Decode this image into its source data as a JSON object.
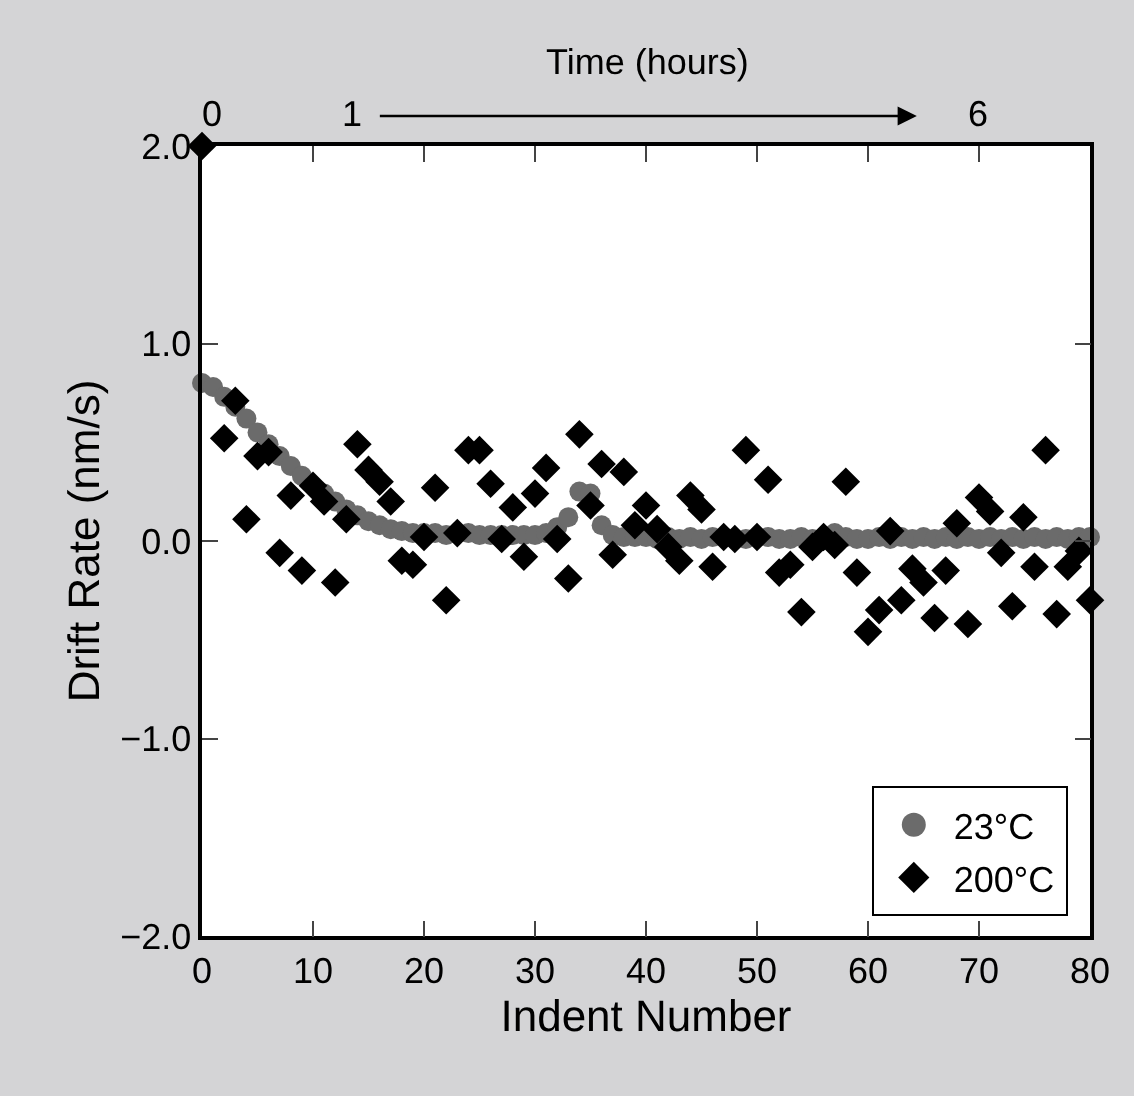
{
  "chart_data": {
    "type": "scatter",
    "xlabel": "Indent Number",
    "ylabel": "Drift Rate (nm/s)",
    "x2label": "Time (hours)",
    "xlim": [
      0,
      80
    ],
    "xticks": [
      0,
      10,
      20,
      30,
      40,
      50,
      60,
      70,
      80
    ],
    "annotations": [
      "0",
      "1",
      "6"
    ],
    "ylim": [
      -2,
      2
    ],
    "yticks": [
      {
        "value": 2,
        "label": "2.0"
      },
      {
        "value": 1,
        "label": "1.0"
      },
      {
        "value": 0,
        "label": "0.0"
      },
      {
        "value": -1,
        "label": "−1.0"
      },
      {
        "value": -2,
        "label": "−2.0"
      }
    ],
    "legend": "bottom right",
    "series": [
      {
        "name": "23°C",
        "color": "#6b6b6b",
        "marker": "circle",
        "x": [
          0,
          1,
          2,
          3,
          4,
          5,
          6,
          7,
          8,
          9,
          10,
          11,
          12,
          13,
          14,
          15,
          16,
          17,
          18,
          19,
          20,
          21,
          22,
          23,
          24,
          25,
          26,
          27,
          28,
          29,
          30,
          31,
          32,
          33,
          34,
          35,
          36,
          37,
          38,
          39,
          40,
          41,
          42,
          43,
          44,
          45,
          46,
          47,
          48,
          49,
          50,
          51,
          52,
          53,
          54,
          55,
          56,
          57,
          58,
          59,
          60,
          61,
          62,
          63,
          64,
          65,
          66,
          67,
          68,
          69,
          70,
          71,
          72,
          73,
          74,
          75,
          76,
          77,
          78,
          79,
          80
        ],
        "values": [
          0.8,
          0.78,
          0.73,
          0.68,
          0.62,
          0.55,
          0.49,
          0.43,
          0.38,
          0.33,
          null,
          0.24,
          0.2,
          0.16,
          0.13,
          0.1,
          0.08,
          0.06,
          0.05,
          0.04,
          0.04,
          0.04,
          0.03,
          null,
          0.04,
          0.03,
          0.03,
          0.03,
          0.03,
          0.03,
          0.03,
          0.04,
          0.07,
          0.12,
          0.25,
          0.24,
          0.08,
          0.03,
          0.02,
          0.02,
          0.02,
          0.01,
          0.02,
          0.01,
          0.02,
          0.01,
          0.02,
          null,
          null,
          0.01,
          null,
          0.02,
          0.01,
          0.01,
          0.02,
          0.01,
          null,
          0.04,
          0.02,
          0.01,
          0.01,
          0.02,
          0.01,
          0.02,
          0.01,
          0.02,
          0.01,
          0.02,
          0.01,
          0.02,
          0.01,
          0.02,
          0.01,
          0.02,
          0.01,
          0.02,
          0.01,
          0.02,
          0.01,
          0.02,
          0.02
        ]
      },
      {
        "name": "200°C",
        "color": "#000000",
        "marker": "diamond",
        "x": [
          0,
          2,
          3,
          4,
          5,
          6,
          7,
          8,
          9,
          10,
          11,
          12,
          13,
          14,
          15,
          16,
          17,
          18,
          19,
          20,
          21,
          22,
          23,
          24,
          25,
          26,
          27,
          28,
          29,
          30,
          31,
          32,
          33,
          34,
          35,
          36,
          37,
          38,
          39,
          40,
          41,
          42,
          43,
          44,
          45,
          46,
          47,
          48,
          49,
          50,
          51,
          52,
          53,
          54,
          55,
          56,
          57,
          58,
          59,
          60,
          61,
          62,
          63,
          64,
          65,
          66,
          67,
          68,
          69,
          70,
          71,
          72,
          73,
          74,
          75,
          76,
          77,
          78,
          79,
          80
        ],
        "values": [
          2.0,
          0.52,
          0.71,
          0.11,
          0.43,
          0.45,
          -0.06,
          0.23,
          -0.15,
          0.28,
          0.2,
          -0.21,
          0.11,
          0.49,
          0.36,
          0.3,
          0.2,
          -0.1,
          -0.12,
          0.02,
          0.27,
          -0.3,
          0.04,
          0.46,
          0.46,
          0.29,
          0.01,
          0.17,
          -0.08,
          0.24,
          0.37,
          0.01,
          -0.19,
          0.54,
          0.18,
          0.39,
          -0.07,
          0.35,
          0.08,
          0.18,
          0.06,
          -0.03,
          -0.1,
          0.23,
          0.16,
          -0.13,
          0.02,
          0.01,
          0.46,
          0.02,
          0.31,
          -0.16,
          -0.12,
          -0.36,
          -0.03,
          0.02,
          -0.02,
          0.3,
          -0.16,
          -0.46,
          -0.35,
          0.05,
          -0.3,
          -0.14,
          -0.21,
          -0.39,
          -0.15,
          0.09,
          -0.42,
          0.22,
          0.15,
          -0.06,
          -0.33,
          0.12,
          -0.13,
          0.46,
          -0.37,
          -0.13,
          -0.05,
          -0.3
        ]
      }
    ]
  }
}
